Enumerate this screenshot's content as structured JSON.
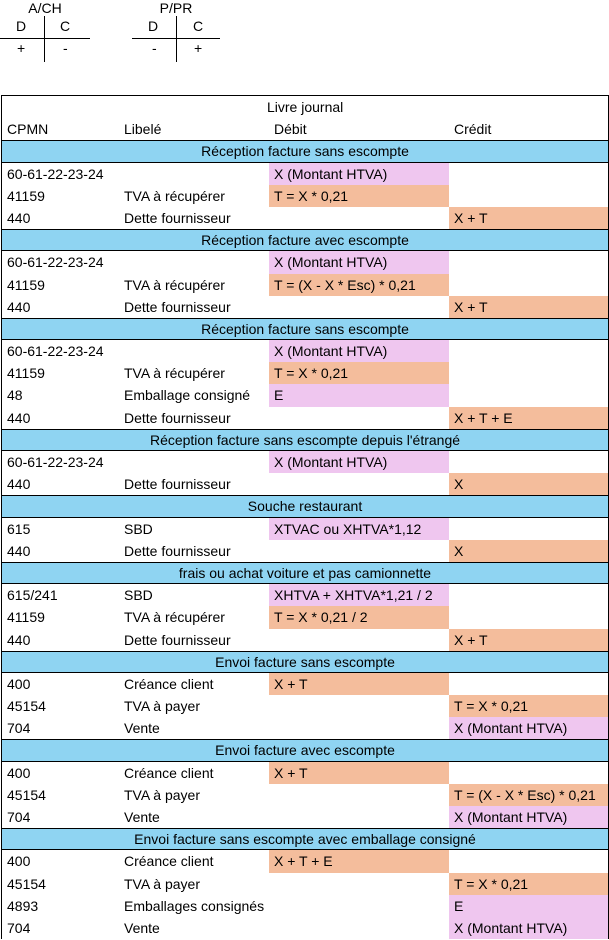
{
  "t_accounts": [
    {
      "title": "A/CH",
      "debit_label": "D",
      "credit_label": "C",
      "debit_sign": "+",
      "credit_sign": "-"
    },
    {
      "title": "P/PR",
      "debit_label": "D",
      "credit_label": "C",
      "debit_sign": "-",
      "credit_sign": "+"
    }
  ],
  "journal": {
    "title": "Livre journal",
    "headers": {
      "cpmn": "CPMN",
      "libele": "Libelé",
      "debit": "Débit",
      "credit": "Crédit"
    },
    "colors": {
      "section": "#8fd4f2",
      "pink": "#efc6ef",
      "orange": "#f4bd9c"
    },
    "sections": [
      {
        "title": "Réception facture sans escompte",
        "rows": [
          {
            "cpmn": "60-61-22-23-24",
            "libele": "",
            "debit": "X (Montant HTVA)",
            "debit_color": "pink",
            "credit": "",
            "credit_color": ""
          },
          {
            "cpmn": "41159",
            "libele": "TVA à récupérer",
            "debit": "T = X * 0,21",
            "debit_color": "orange",
            "credit": "",
            "credit_color": ""
          },
          {
            "cpmn": "440",
            "libele": "Dette fournisseur",
            "debit": "",
            "debit_color": "",
            "credit": "X + T",
            "credit_color": "orange"
          }
        ]
      },
      {
        "title": "Réception facture avec escompte",
        "rows": [
          {
            "cpmn": "60-61-22-23-24",
            "libele": "",
            "debit": "X (Montant HTVA)",
            "debit_color": "pink",
            "credit": "",
            "credit_color": ""
          },
          {
            "cpmn": "41159",
            "libele": "TVA à récupérer",
            "debit": "T = (X - X * Esc) * 0,21",
            "debit_color": "orange",
            "credit": "",
            "credit_color": ""
          },
          {
            "cpmn": "440",
            "libele": "Dette fournisseur",
            "debit": "",
            "debit_color": "",
            "credit": "X + T",
            "credit_color": "orange"
          }
        ]
      },
      {
        "title": "Réception facture sans escompte",
        "rows": [
          {
            "cpmn": "60-61-22-23-24",
            "libele": "",
            "debit": "X (Montant HTVA)",
            "debit_color": "pink",
            "credit": "",
            "credit_color": ""
          },
          {
            "cpmn": "41159",
            "libele": "TVA à récupérer",
            "debit": "T = X * 0,21",
            "debit_color": "orange",
            "credit": "",
            "credit_color": ""
          },
          {
            "cpmn": "48",
            "libele": "Emballage consigné",
            "debit": "E",
            "debit_color": "pink",
            "credit": "",
            "credit_color": ""
          },
          {
            "cpmn": "440",
            "libele": "Dette fournisseur",
            "debit": "",
            "debit_color": "",
            "credit": "X + T + E",
            "credit_color": "orange"
          }
        ]
      },
      {
        "title": "Réception facture sans escompte depuis l'étrangé",
        "rows": [
          {
            "cpmn": "60-61-22-23-24",
            "libele": "",
            "debit": "X (Montant HTVA)",
            "debit_color": "pink",
            "credit": "",
            "credit_color": ""
          },
          {
            "cpmn": "440",
            "libele": "Dette fournisseur",
            "debit": "",
            "debit_color": "",
            "credit": "X",
            "credit_color": "orange"
          }
        ]
      },
      {
        "title": "Souche restaurant",
        "rows": [
          {
            "cpmn": "615",
            "libele": "SBD",
            "debit": "XTVAC ou XHTVA*1,12",
            "debit_color": "pink",
            "credit": "",
            "credit_color": ""
          },
          {
            "cpmn": "440",
            "libele": "Dette fournisseur",
            "debit": "",
            "debit_color": "",
            "credit": "X",
            "credit_color": "orange"
          }
        ]
      },
      {
        "title": "frais ou achat voiture et pas camionnette",
        "rows": [
          {
            "cpmn": "615/241",
            "libele": "SBD",
            "debit": "XHTVA + XHTVA*1,21 / 2",
            "debit_color": "pink",
            "credit": "",
            "credit_color": ""
          },
          {
            "cpmn": "41159",
            "libele": "TVA à récupérer",
            "debit": "T = X * 0,21 / 2",
            "debit_color": "orange",
            "credit": "",
            "credit_color": ""
          },
          {
            "cpmn": "440",
            "libele": "Dette fournisseur",
            "debit": "",
            "debit_color": "",
            "credit": "X + T",
            "credit_color": "orange"
          }
        ]
      },
      {
        "title": "Envoi facture sans escompte",
        "rows": [
          {
            "cpmn": "400",
            "libele": "Créance client",
            "debit": "X + T",
            "debit_color": "orange",
            "credit": "",
            "credit_color": ""
          },
          {
            "cpmn": "45154",
            "libele": "TVA à payer",
            "debit": "",
            "debit_color": "",
            "credit": "T = X * 0,21",
            "credit_color": "orange"
          },
          {
            "cpmn": "704",
            "libele": "Vente",
            "debit": "",
            "debit_color": "",
            "credit": "X (Montant HTVA)",
            "credit_color": "pink"
          }
        ]
      },
      {
        "title": "Envoi facture avec escompte",
        "rows": [
          {
            "cpmn": "400",
            "libele": "Créance client",
            "debit": "X + T",
            "debit_color": "orange",
            "credit": "",
            "credit_color": ""
          },
          {
            "cpmn": "45154",
            "libele": "TVA à payer",
            "debit": "",
            "debit_color": "",
            "credit": "T = (X - X * Esc) * 0,21",
            "credit_color": "orange"
          },
          {
            "cpmn": "704",
            "libele": "Vente",
            "debit": "",
            "debit_color": "",
            "credit": "X (Montant HTVA)",
            "credit_color": "pink"
          }
        ]
      },
      {
        "title": "Envoi facture sans escompte avec emballage consigné",
        "rows": [
          {
            "cpmn": "400",
            "libele": "Créance client",
            "debit": "X + T + E",
            "debit_color": "orange",
            "credit": "",
            "credit_color": ""
          },
          {
            "cpmn": "45154",
            "libele": "TVA à payer",
            "debit": "",
            "debit_color": "",
            "credit": "T = X * 0,21",
            "credit_color": "orange"
          },
          {
            "cpmn": "4893",
            "libele": "Emballages consignés",
            "debit": "",
            "debit_color": "",
            "credit": "E",
            "credit_color": "pink"
          },
          {
            "cpmn": "704",
            "libele": "Vente",
            "debit": "",
            "debit_color": "",
            "credit": "X (Montant HTVA)",
            "credit_color": "pink"
          }
        ]
      }
    ]
  }
}
